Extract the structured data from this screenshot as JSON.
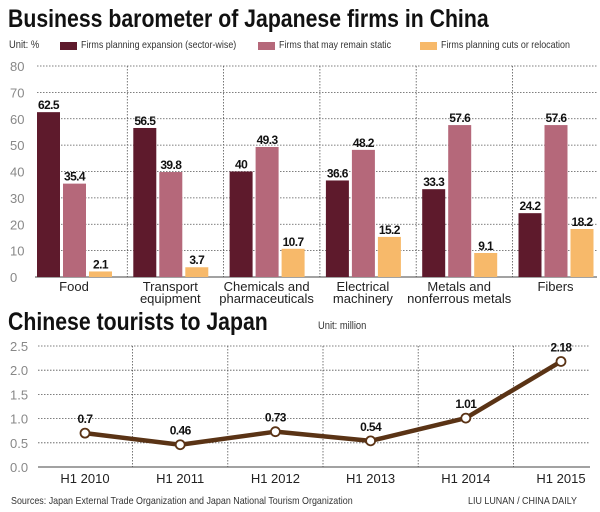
{
  "chart_data": [
    {
      "type": "bar",
      "title": "Business barometer of Japanese firms in China",
      "unit": "Unit: %",
      "ylim": [
        0,
        80
      ],
      "yticks": [
        "0",
        "10",
        "20",
        "30",
        "40",
        "50",
        "60",
        "70",
        "80"
      ],
      "grid": true,
      "legend_placement": "top",
      "categories": [
        [
          "Food"
        ],
        [
          "Transport",
          "equipment"
        ],
        [
          "Chemicals and",
          "pharmaceuticals"
        ],
        [
          "Electrical",
          "machinery"
        ],
        [
          "Metals and",
          "nonferrous metals"
        ],
        [
          "Fibers"
        ]
      ],
      "series": [
        {
          "name": "Firms planning expansion (sector-wise)",
          "color": "#5e1a2c",
          "values": [
            62.5,
            56.5,
            40,
            36.6,
            33.3,
            24.2
          ],
          "labels": [
            "62.5",
            "56.5",
            "40",
            "36.6",
            "33.3",
            "24.2"
          ]
        },
        {
          "name": "Firms that may remain static",
          "color": "#b5687a",
          "values": [
            35.4,
            39.8,
            49.3,
            48.2,
            57.6,
            57.6
          ],
          "labels": [
            "35.4",
            "39.8",
            "49.3",
            "48.2",
            "57.6",
            "57.6"
          ]
        },
        {
          "name": "Firms planning cuts or relocation",
          "color": "#f7b96a",
          "values": [
            2.1,
            3.7,
            10.7,
            15.2,
            9.1,
            18.2
          ],
          "labels": [
            "2.1",
            "3.7",
            "10.7",
            "15.2",
            "9.1",
            "18.2"
          ]
        }
      ]
    },
    {
      "type": "line",
      "title": "Chinese tourists to Japan",
      "unit": "Unit: million",
      "ylim": [
        0,
        2.5
      ],
      "yticks": [
        "0.0",
        "0.5",
        "1.0",
        "1.5",
        "2.0",
        "2.5"
      ],
      "grid": true,
      "color": "#5a3315",
      "x": [
        "H1 2010",
        "H1 2011",
        "H1 2012",
        "H1 2013",
        "H1 2014",
        "H1 2015"
      ],
      "values": [
        0.7,
        0.46,
        0.73,
        0.54,
        1.01,
        2.18
      ],
      "labels": [
        "0.7",
        "0.46",
        "0.73",
        "0.54",
        "1.01",
        "2.18"
      ]
    }
  ],
  "footer": {
    "sources": "Sources: Japan External Trade Organization and Japan National Tourism Organization",
    "credit": "LIU LUNAN / CHINA DAILY"
  }
}
